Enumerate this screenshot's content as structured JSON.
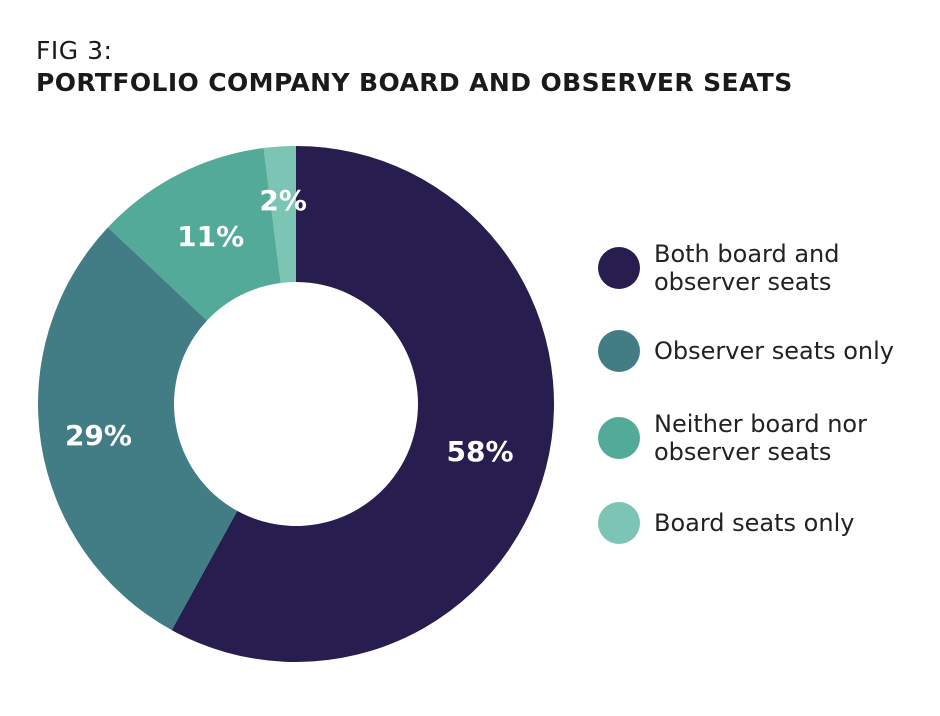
{
  "figure": {
    "label": "FIG 3:",
    "title": "PORTFOLIO COMPANY BOARD AND OBSERVER SEATS"
  },
  "chart_data": {
    "type": "pie",
    "donut": true,
    "legend_position": "right",
    "title": "PORTFOLIO COMPANY BOARD AND OBSERVER SEATS",
    "categories": [
      "Both board and observer seats",
      "Observer seats only",
      "Neither board nor observer seats",
      "Board seats only"
    ],
    "values": [
      58,
      29,
      11,
      2
    ],
    "value_labels": [
      "58%",
      "29%",
      "11%",
      "2%"
    ],
    "colors": [
      "#271d4e",
      "#427d86",
      "#53aa99",
      "#7cc4b3"
    ]
  }
}
